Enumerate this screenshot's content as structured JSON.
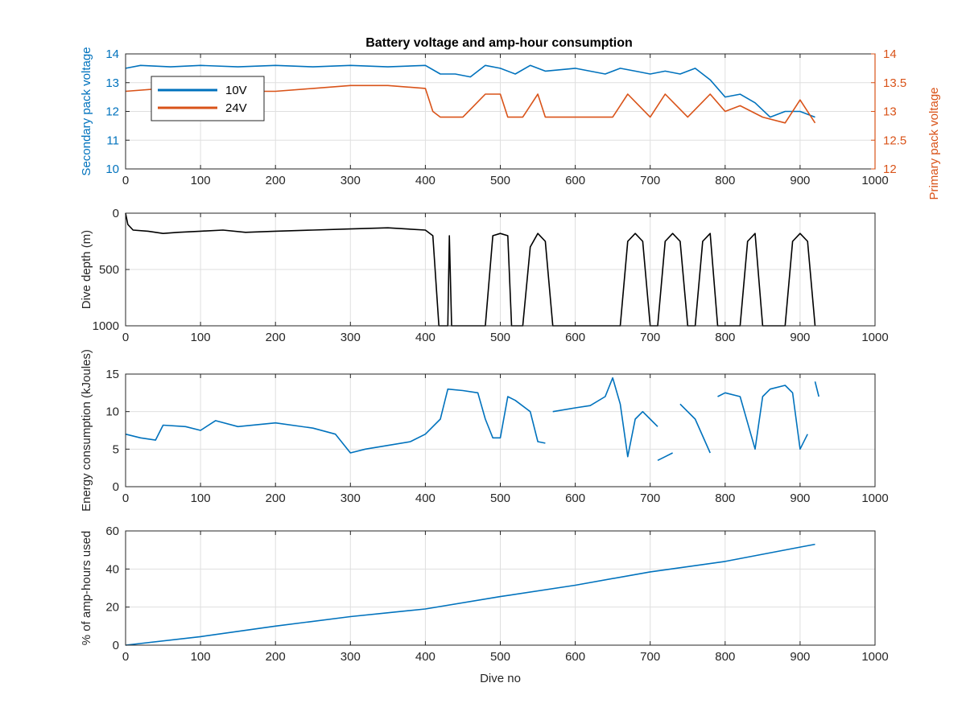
{
  "figure_title": "Battery voltage and amp-hour consumption",
  "colors": {
    "blue": "#0072BD",
    "orange": "#D95319",
    "black": "#000000",
    "grid": "#dfdfdf",
    "axis": "#262626"
  },
  "chart_data": [
    {
      "type": "line",
      "title": "Battery voltage and amp-hour consumption",
      "xlabel": "",
      "xlim": [
        0,
        1000
      ],
      "xticks": [
        0,
        100,
        200,
        300,
        400,
        500,
        600,
        700,
        800,
        900,
        1000
      ],
      "ylabel": "Secondary pack voltage",
      "ylim": [
        10,
        14
      ],
      "yticks": [
        10,
        11,
        12,
        13,
        14
      ],
      "ylabel_right": "Primary pack voltage",
      "ylim_right": [
        12,
        14
      ],
      "yticks_right": [
        12,
        12.5,
        13,
        13.5,
        14
      ],
      "grid": true,
      "legend": "top-left",
      "series": [
        {
          "name": "10V",
          "axis": "left",
          "color": "#0072BD",
          "x": [
            0,
            20,
            60,
            100,
            150,
            200,
            250,
            300,
            350,
            400,
            420,
            440,
            460,
            480,
            500,
            520,
            540,
            560,
            600,
            640,
            660,
            680,
            700,
            720,
            740,
            760,
            780,
            800,
            820,
            840,
            860,
            880,
            900,
            920
          ],
          "y": [
            13.5,
            13.6,
            13.55,
            13.6,
            13.55,
            13.6,
            13.55,
            13.6,
            13.55,
            13.6,
            13.3,
            13.3,
            13.2,
            13.6,
            13.5,
            13.3,
            13.6,
            13.4,
            13.5,
            13.3,
            13.5,
            13.4,
            13.3,
            13.4,
            13.3,
            13.5,
            13.1,
            12.5,
            12.6,
            12.3,
            11.8,
            12.0,
            12.0,
            11.8
          ]
        },
        {
          "name": "24V",
          "axis": "right",
          "color": "#D95319",
          "x": [
            0,
            50,
            100,
            150,
            200,
            250,
            300,
            350,
            400,
            410,
            420,
            430,
            450,
            480,
            500,
            510,
            530,
            550,
            560,
            600,
            650,
            670,
            700,
            720,
            750,
            780,
            800,
            820,
            850,
            880,
            900,
            920
          ],
          "y": [
            13.35,
            13.4,
            13.4,
            13.35,
            13.35,
            13.4,
            13.45,
            13.45,
            13.4,
            13.0,
            12.9,
            12.9,
            12.9,
            13.3,
            13.3,
            12.9,
            12.9,
            13.3,
            12.9,
            12.9,
            12.9,
            13.3,
            12.9,
            13.3,
            12.9,
            13.3,
            13.0,
            13.1,
            12.9,
            12.8,
            13.2,
            12.8
          ]
        }
      ]
    },
    {
      "type": "line",
      "title": "",
      "xlabel": "",
      "xlim": [
        0,
        1000
      ],
      "xticks": [
        0,
        100,
        200,
        300,
        400,
        500,
        600,
        700,
        800,
        900,
        1000
      ],
      "ylabel": "Dive depth (m)",
      "ylim": [
        0,
        1000
      ],
      "y_reversed": true,
      "yticks": [
        0,
        500,
        1000
      ],
      "grid": true,
      "series": [
        {
          "name": "",
          "color": "#000000",
          "x": [
            0,
            3,
            10,
            30,
            50,
            70,
            100,
            130,
            160,
            200,
            250,
            300,
            350,
            400,
            410,
            418,
            420,
            425,
            430,
            432,
            435,
            440,
            470,
            480,
            490,
            500,
            510,
            515,
            530,
            540,
            550,
            560,
            570,
            600,
            650,
            660,
            670,
            680,
            690,
            700,
            710,
            720,
            730,
            740,
            750,
            760,
            770,
            780,
            790,
            800,
            820,
            830,
            840,
            850,
            860,
            880,
            890,
            900,
            910,
            920
          ],
          "y": [
            0,
            100,
            150,
            160,
            180,
            170,
            160,
            150,
            170,
            160,
            150,
            140,
            130,
            150,
            200,
            1000,
            1000,
            1000,
            1000,
            200,
            1000,
            1000,
            1000,
            1000,
            200,
            180,
            200,
            1000,
            1000,
            300,
            180,
            250,
            1000,
            1000,
            1000,
            1000,
            250,
            180,
            250,
            1000,
            1000,
            250,
            180,
            250,
            1000,
            1000,
            250,
            180,
            1000,
            1000,
            1000,
            250,
            180,
            1000,
            1000,
            1000,
            250,
            180,
            250,
            1000
          ]
        }
      ]
    },
    {
      "type": "line",
      "title": "",
      "xlabel": "",
      "xlim": [
        0,
        1000
      ],
      "xticks": [
        0,
        100,
        200,
        300,
        400,
        500,
        600,
        700,
        800,
        900,
        1000
      ],
      "ylabel": "Energy consumption (kJoules)",
      "ylim": [
        0,
        15
      ],
      "yticks": [
        0,
        5,
        10,
        15
      ],
      "grid": true,
      "series": [
        {
          "name": "",
          "color": "#0072BD",
          "x": [
            0,
            20,
            40,
            50,
            80,
            100,
            120,
            150,
            200,
            250,
            280,
            300,
            320,
            350,
            380,
            400,
            410,
            420,
            430,
            450,
            470,
            480,
            490,
            500,
            510,
            520,
            540,
            550,
            560,
            null,
            570,
            600,
            620,
            640,
            650,
            660,
            670,
            680,
            690,
            700,
            710,
            null,
            710,
            720,
            730,
            null,
            740,
            760,
            780,
            null,
            790,
            800,
            820,
            840,
            850,
            860,
            880,
            890,
            900,
            910,
            null,
            920,
            925
          ],
          "y": [
            7,
            6.5,
            6.2,
            8.2,
            8.0,
            7.5,
            8.8,
            8.0,
            8.5,
            7.8,
            7.0,
            4.5,
            5.0,
            5.5,
            6.0,
            7.0,
            8.0,
            9.0,
            13.0,
            12.8,
            12.5,
            9.0,
            6.5,
            6.5,
            12.0,
            11.5,
            10.0,
            6.0,
            5.8,
            null,
            10.0,
            10.5,
            10.8,
            12.0,
            14.5,
            11.0,
            4.0,
            9.0,
            10.0,
            9.0,
            8.0,
            null,
            3.5,
            4.0,
            4.5,
            null,
            11.0,
            9.0,
            4.5,
            null,
            12.0,
            12.5,
            12.0,
            5.0,
            12.0,
            13.0,
            13.5,
            12.5,
            5.0,
            7.0,
            null,
            14.0,
            12.0
          ]
        }
      ]
    },
    {
      "type": "line",
      "title": "",
      "xlabel": "Dive no",
      "xlim": [
        0,
        1000
      ],
      "xticks": [
        0,
        100,
        200,
        300,
        400,
        500,
        600,
        700,
        800,
        900,
        1000
      ],
      "ylabel": "% of amp-hours used",
      "ylim": [
        0,
        60
      ],
      "yticks": [
        0,
        20,
        40,
        60
      ],
      "grid": true,
      "series": [
        {
          "name": "",
          "color": "#0072BD",
          "x": [
            0,
            100,
            200,
            300,
            400,
            500,
            600,
            700,
            800,
            900,
            920
          ],
          "y": [
            0,
            4.5,
            10,
            15,
            19,
            25.5,
            31.5,
            38.5,
            44,
            51.5,
            53
          ]
        }
      ]
    }
  ]
}
